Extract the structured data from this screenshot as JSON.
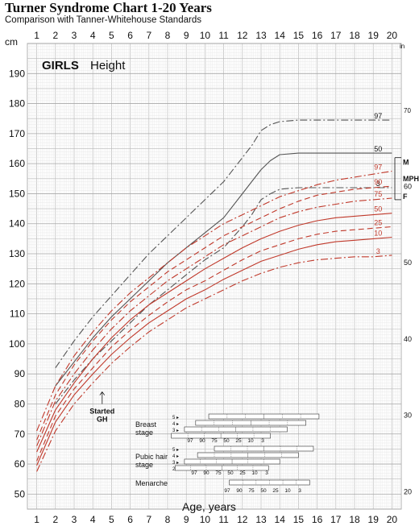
{
  "header": {
    "title": "Turner Syndrome Chart 1-20 Years",
    "subtitle": "Comparison with Tanner-Whitehouse Standards"
  },
  "chart_data": {
    "type": "line",
    "title": "Turner Syndrome Chart 1-20 Years",
    "subtitle": "Comparison with Tanner-Whitehouse Standards",
    "panel_label": "GIRLS",
    "panel_sub": "Height",
    "xlabel": "Age, years",
    "ylabel_left": "cm",
    "ylabel_right": "in",
    "xlim": [
      0.5,
      20.5
    ],
    "ylim": [
      45,
      200
    ],
    "x_ticks": [
      1,
      2,
      3,
      4,
      5,
      6,
      7,
      8,
      9,
      10,
      11,
      12,
      13,
      14,
      15,
      16,
      17,
      18,
      19,
      20
    ],
    "y_ticks_cm": [
      50,
      60,
      70,
      80,
      90,
      100,
      110,
      120,
      130,
      140,
      150,
      160,
      170,
      180,
      190
    ],
    "y_ticks_in": [
      20,
      30,
      40,
      50,
      60,
      70
    ],
    "colors": {
      "normal": "#555555",
      "turner": "#c0392b",
      "grid_major": "#b8b8b8",
      "grid_minor": "#e4e4e4"
    },
    "series_normal": [
      {
        "name": "97",
        "dash": "dashdot",
        "x": [
          2,
          3,
          4,
          5,
          6,
          7,
          8,
          9,
          10,
          11,
          12,
          12.5,
          13,
          13.5,
          14,
          15,
          16,
          17,
          18,
          19,
          20
        ],
        "y": [
          92,
          101,
          109,
          116,
          123,
          130,
          136,
          142,
          148,
          154,
          162,
          166,
          171,
          173,
          174,
          174.5,
          174.5,
          174.5,
          174.5,
          174.5,
          174.5
        ]
      },
      {
        "name": "50",
        "dash": "solid",
        "x": [
          2,
          3,
          4,
          5,
          6,
          7,
          8,
          9,
          10,
          11,
          12,
          12.5,
          13,
          13.5,
          14,
          15,
          16,
          17,
          18,
          19,
          20
        ],
        "y": [
          86,
          94,
          102,
          109,
          115,
          121,
          127,
          132,
          137,
          142,
          150,
          154,
          158,
          161,
          163,
          163.5,
          163.5,
          163.5,
          163.5,
          163.5,
          163.5
        ]
      },
      {
        "name": "3",
        "dash": "dashdot",
        "x": [
          2,
          3,
          4,
          5,
          6,
          7,
          8,
          9,
          10,
          11,
          12,
          12.5,
          13,
          13.5,
          14,
          15,
          16,
          17,
          18,
          19,
          20
        ],
        "y": [
          80,
          88,
          95,
          101,
          107,
          113,
          118,
          123,
          128,
          132,
          139,
          143,
          148,
          150,
          151.5,
          152,
          152,
          152,
          152,
          152,
          152
        ]
      }
    ],
    "series_turner": [
      {
        "name": "97",
        "dash": "dashdot",
        "x": [
          1,
          2,
          3,
          4,
          5,
          6,
          7,
          8,
          9,
          10,
          11,
          12,
          13,
          14,
          15,
          16,
          17,
          18,
          19,
          20
        ],
        "y": [
          71,
          86,
          96,
          104,
          111,
          117,
          122,
          127,
          132,
          136,
          140,
          143,
          146,
          149,
          151,
          153,
          154.5,
          155.5,
          156.5,
          157.5
        ]
      },
      {
        "name": "90",
        "dash": "dash",
        "x": [
          1,
          2,
          3,
          4,
          5,
          6,
          7,
          8,
          9,
          10,
          11,
          12,
          13,
          14,
          15,
          16,
          17,
          18,
          19,
          20
        ],
        "y": [
          68,
          83,
          93,
          101,
          108,
          114,
          119,
          124,
          128,
          132,
          136,
          139,
          142,
          145,
          147.5,
          149.5,
          150.5,
          151.5,
          152,
          152.5
        ]
      },
      {
        "name": "75",
        "dash": "dashdot",
        "x": [
          1,
          2,
          3,
          4,
          5,
          6,
          7,
          8,
          9,
          10,
          11,
          12,
          13,
          14,
          15,
          16,
          17,
          18,
          19,
          20
        ],
        "y": [
          66,
          81,
          90,
          98,
          105,
          111,
          116,
          121,
          125,
          129,
          133,
          136,
          139,
          142,
          144,
          145.5,
          146.5,
          147.5,
          148,
          148.5
        ]
      },
      {
        "name": "50",
        "dash": "solid",
        "x": [
          1,
          2,
          3,
          4,
          5,
          6,
          7,
          8,
          9,
          10,
          11,
          12,
          13,
          14,
          15,
          16,
          17,
          18,
          19,
          20
        ],
        "y": [
          64,
          78,
          87,
          95,
          102,
          108,
          113,
          117,
          121,
          125,
          128.5,
          132,
          135,
          137.5,
          139.5,
          141,
          142,
          142.5,
          143,
          143.5
        ]
      },
      {
        "name": "25",
        "dash": "dash",
        "x": [
          1,
          2,
          3,
          4,
          5,
          6,
          7,
          8,
          9,
          10,
          11,
          12,
          13,
          14,
          15,
          16,
          17,
          18,
          19,
          20
        ],
        "y": [
          61,
          76,
          85,
          92,
          99,
          104.5,
          109.5,
          114,
          118,
          121,
          124.5,
          128,
          131,
          133,
          135,
          136.5,
          137.5,
          138,
          138.5,
          139
        ]
      },
      {
        "name": "10",
        "dash": "solid",
        "x": [
          1,
          2,
          3,
          4,
          5,
          6,
          7,
          8,
          9,
          10,
          11,
          12,
          13,
          14,
          15,
          16,
          17,
          18,
          19,
          20
        ],
        "y": [
          59.5,
          74,
          83,
          90,
          96.5,
          102,
          107,
          111,
          115,
          118,
          121.5,
          124.5,
          127.5,
          129.5,
          131.5,
          133,
          134,
          134.5,
          135,
          135.5
        ]
      },
      {
        "name": "3",
        "dash": "dashdot",
        "x": [
          1,
          2,
          3,
          4,
          5,
          6,
          7,
          8,
          9,
          10,
          11,
          12,
          13,
          14,
          15,
          16,
          17,
          18,
          19,
          20
        ],
        "y": [
          57.5,
          71,
          80,
          87,
          93.5,
          99,
          104,
          108,
          112,
          115,
          118,
          121,
          123.5,
          125.5,
          127,
          128,
          128.5,
          129,
          129,
          129.5
        ]
      }
    ],
    "annotations": {
      "started": {
        "label_1": "Started",
        "label_2": "GH",
        "x": 4.5,
        "y": 84
      },
      "side_labels": [
        {
          "label": "M",
          "y": 160.5
        },
        {
          "label": "MPH",
          "y": 155
        },
        {
          "label": "F",
          "y": 149
        }
      ]
    },
    "stages": {
      "breast": {
        "label_1": "Breast",
        "label_2": "stage",
        "rows": [
          "5",
          "4",
          "3",
          "2"
        ],
        "percentiles": [
          "97",
          "90",
          "75",
          "50",
          "25",
          "10",
          "3"
        ]
      },
      "pubic": {
        "label_1": "Pubic hair",
        "label_2": "stage",
        "rows": [
          "5",
          "4",
          "3",
          "2"
        ],
        "percentiles": [
          "97",
          "90",
          "75",
          "50",
          "25",
          "10",
          "3"
        ]
      },
      "menarche": {
        "label": "Menarche",
        "percentiles": [
          "97",
          "90",
          "75",
          "50",
          "25",
          "10",
          "3"
        ]
      }
    }
  }
}
